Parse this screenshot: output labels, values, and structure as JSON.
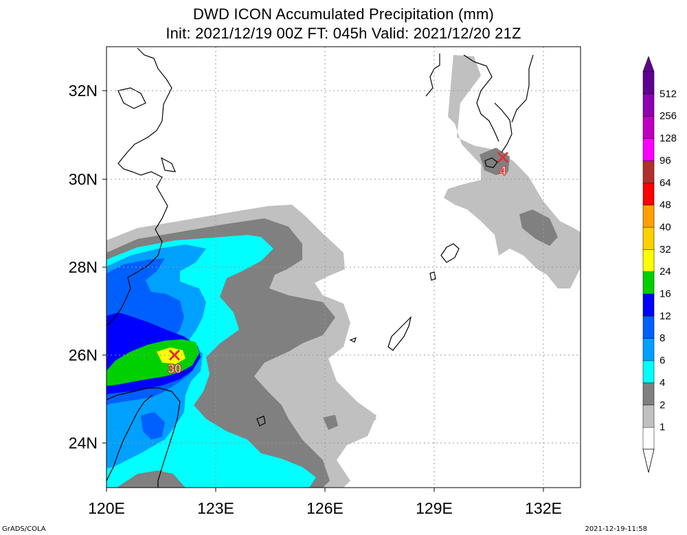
{
  "title": {
    "line1": "DWD ICON Accumulated Precipitation (mm)",
    "line2": "Init: 2021/12/19 00Z  FT: 045h  Valid: 2021/12/20 21Z"
  },
  "axes": {
    "lon_labels": [
      "120E",
      "123E",
      "126E",
      "129E",
      "132E"
    ],
    "lat_labels": [
      "24N",
      "26N",
      "28N",
      "30N",
      "32N"
    ],
    "lon_range": [
      120,
      133
    ],
    "lat_range": [
      23,
      33
    ]
  },
  "colorbar": {
    "levels": [
      "1",
      "2",
      "4",
      "6",
      "8",
      "12",
      "16",
      "24",
      "32",
      "40",
      "48",
      "64",
      "96",
      "128",
      "256",
      "512"
    ],
    "colors": [
      "#ffffff",
      "#c0c0c0",
      "#808080",
      "#00ffff",
      "#00a0ff",
      "#0060ff",
      "#0000ff",
      "#00d000",
      "#ffff00",
      "#ffd000",
      "#ffa000",
      "#ff0000",
      "#b03030",
      "#ff00ff",
      "#c000c0",
      "#9000b0",
      "#600090"
    ]
  },
  "markers": [
    {
      "label": "30",
      "lon": 121.8,
      "lat": 26.0
    },
    {
      "label": "4",
      "lon": 130.9,
      "lat": 30.5
    }
  ],
  "footer": {
    "left": "GrADS/COLA",
    "right": "2021-12-19-11:58"
  }
}
